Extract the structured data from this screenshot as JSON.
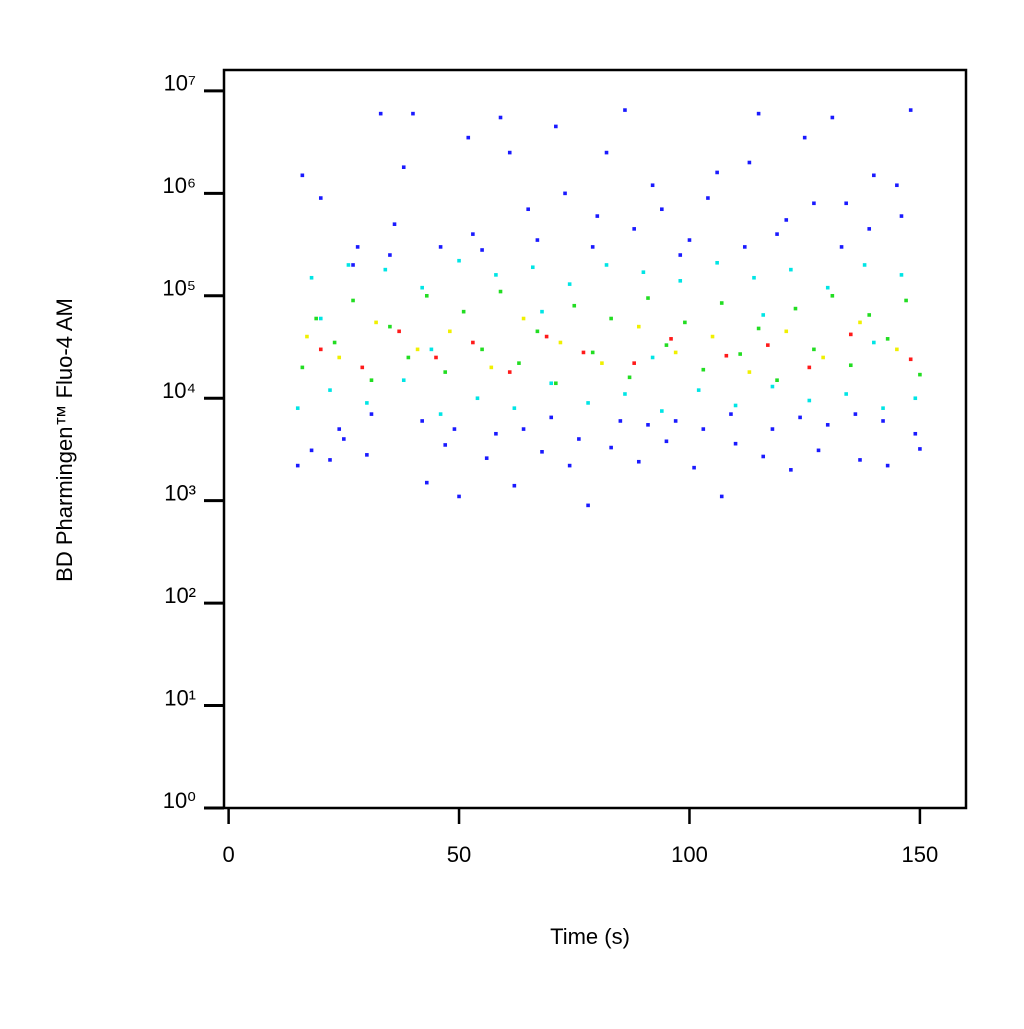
{
  "chart_data": {
    "type": "scatter",
    "x_label": "Time (s)",
    "y_label": "BD Pharmingen™ Fluo-4 AM",
    "xlim": [
      -1,
      160
    ],
    "xticks": [
      0,
      50,
      100,
      150
    ],
    "ylim": [
      1,
      16000000
    ],
    "ylog": true,
    "yticks": [
      {
        "value": 1,
        "label": "10⁰"
      },
      {
        "value": 10,
        "label": "10¹"
      },
      {
        "value": 100,
        "label": "10²"
      },
      {
        "value": 1000,
        "label": "10³"
      },
      {
        "value": 10000,
        "label": "10⁴"
      },
      {
        "value": 100000,
        "label": "10⁵"
      },
      {
        "value": 1000000,
        "label": "10⁶"
      },
      {
        "value": 10000000,
        "label": "10⁷"
      }
    ],
    "series": [
      {
        "color": "#1a1aff",
        "x": [
          15,
          18,
          22,
          25,
          28,
          30,
          33,
          36,
          40,
          43,
          47,
          50,
          53,
          56,
          59,
          62,
          65,
          68,
          71,
          74,
          78,
          80,
          83,
          86,
          89,
          92,
          95,
          98,
          101,
          104,
          107,
          110,
          113,
          116,
          119,
          122,
          125,
          128,
          131,
          134,
          137,
          140,
          143,
          146,
          148,
          150,
          16,
          20,
          24,
          27,
          31,
          35,
          38,
          42,
          46,
          49,
          52,
          55,
          58,
          61,
          64,
          67,
          70,
          73,
          76,
          79,
          82,
          85,
          88,
          91,
          94,
          97,
          100,
          103,
          106,
          109,
          112,
          115,
          118,
          121,
          124,
          127,
          130,
          133,
          136,
          139,
          142,
          145,
          149
        ],
        "y": [
          2200,
          3100,
          2500,
          4000,
          300000,
          2800,
          6000000,
          500000,
          6000000,
          1500,
          3500,
          1100,
          400000,
          2600,
          5500000,
          1400,
          700000,
          3000,
          4500000,
          2200,
          900,
          600000,
          3300,
          6500000,
          2400,
          1200000,
          3800,
          250000,
          2100,
          900000,
          1100,
          3600,
          2000000,
          2700,
          400000,
          2000,
          3500000,
          3100,
          5500000,
          800000,
          2500,
          1500000,
          2200,
          600000,
          6500000,
          3200,
          1500000,
          900000,
          5000,
          200000,
          7000,
          250000,
          1800000,
          6000,
          300000,
          5000,
          3500000,
          280000,
          4500,
          2500000,
          5000,
          350000,
          6500,
          1000000,
          4000,
          300000,
          2500000,
          6000,
          450000,
          5500,
          700000,
          6000,
          350000,
          5000,
          1600000,
          7000,
          300000,
          6000000,
          5000,
          550000,
          6500,
          800000,
          5500,
          300000,
          7000,
          450000,
          6000,
          1200000,
          4500
        ]
      },
      {
        "color": "#00e5e5",
        "x": [
          15,
          18,
          22,
          26,
          30,
          34,
          38,
          42,
          46,
          50,
          54,
          58,
          62,
          66,
          70,
          74,
          78,
          82,
          86,
          90,
          94,
          98,
          102,
          106,
          110,
          114,
          118,
          122,
          126,
          130,
          134,
          138,
          142,
          146,
          149,
          20,
          44,
          68,
          92,
          116,
          140
        ],
        "y": [
          8000,
          150000,
          12000,
          200000,
          9000,
          180000,
          15000,
          120000,
          7000,
          220000,
          10000,
          160000,
          8000,
          190000,
          14000,
          130000,
          9000,
          200000,
          11000,
          170000,
          7500,
          140000,
          12000,
          210000,
          8500,
          150000,
          13000,
          180000,
          9500,
          120000,
          11000,
          200000,
          8000,
          160000,
          10000,
          60000,
          30000,
          70000,
          25000,
          65000,
          35000
        ]
      },
      {
        "color": "#22dd22",
        "x": [
          16,
          19,
          23,
          27,
          31,
          35,
          39,
          43,
          47,
          51,
          55,
          59,
          63,
          67,
          71,
          75,
          79,
          83,
          87,
          91,
          95,
          99,
          103,
          107,
          111,
          115,
          119,
          123,
          127,
          131,
          135,
          139,
          143,
          147,
          150
        ],
        "y": [
          20000,
          60000,
          35000,
          90000,
          15000,
          50000,
          25000,
          100000,
          18000,
          70000,
          30000,
          110000,
          22000,
          45000,
          14000,
          80000,
          28000,
          60000,
          16000,
          95000,
          33000,
          55000,
          19000,
          85000,
          27000,
          48000,
          15000,
          75000,
          30000,
          100000,
          21000,
          65000,
          38000,
          90000,
          17000
        ]
      },
      {
        "color": "#f0f000",
        "x": [
          17,
          24,
          32,
          41,
          48,
          57,
          64,
          72,
          81,
          89,
          97,
          105,
          113,
          121,
          129,
          137,
          145
        ],
        "y": [
          40000,
          25000,
          55000,
          30000,
          45000,
          20000,
          60000,
          35000,
          22000,
          50000,
          28000,
          40000,
          18000,
          45000,
          25000,
          55000,
          30000
        ]
      },
      {
        "color": "#ff1a1a",
        "x": [
          20,
          29,
          37,
          45,
          53,
          61,
          69,
          77,
          88,
          96,
          108,
          117,
          126,
          135,
          148
        ],
        "y": [
          30000,
          20000,
          45000,
          25000,
          35000,
          18000,
          40000,
          28000,
          22000,
          38000,
          26000,
          33000,
          20000,
          42000,
          24000
        ]
      }
    ]
  }
}
